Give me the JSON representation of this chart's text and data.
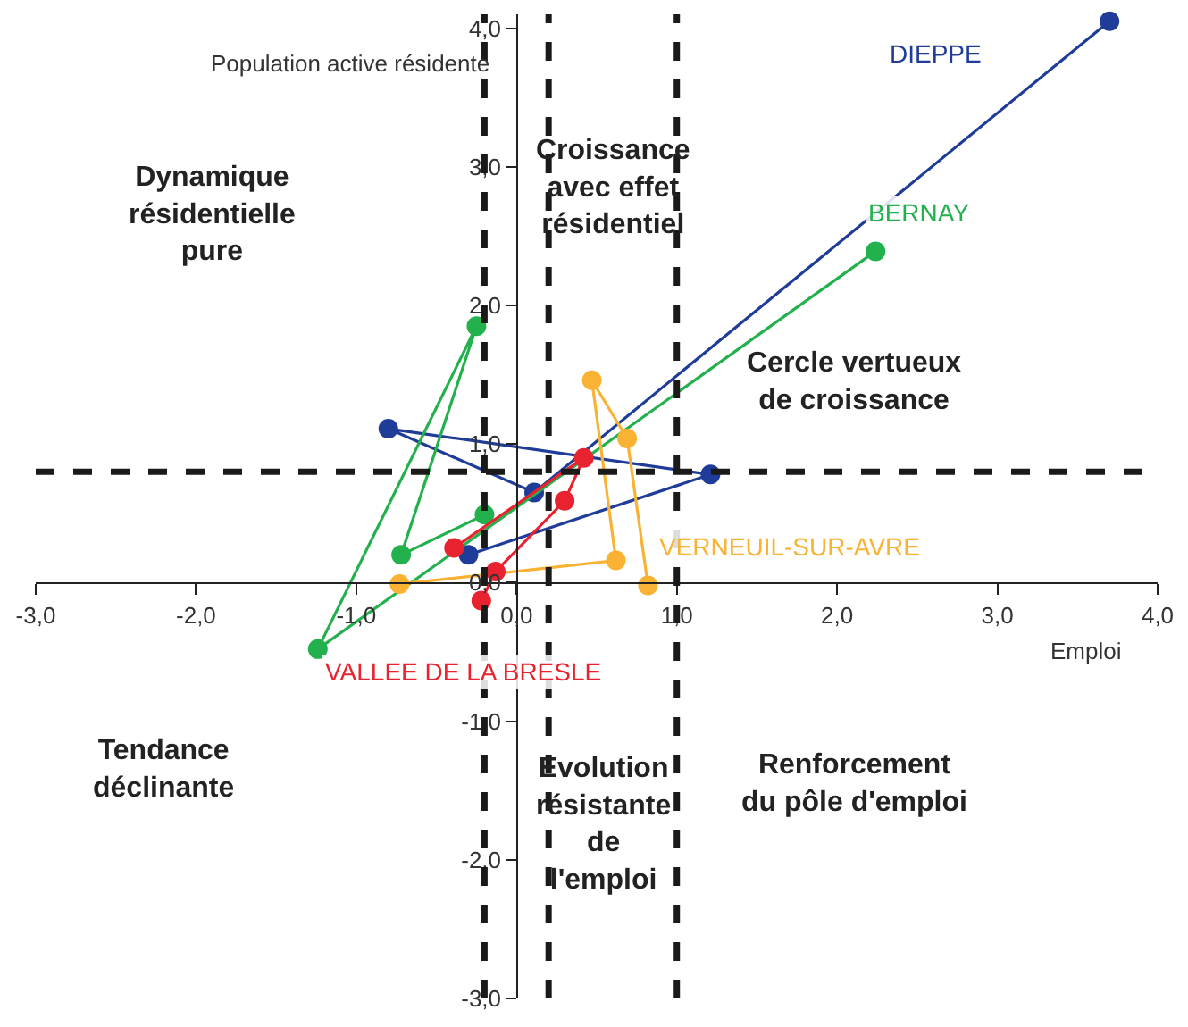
{
  "chart_data": {
    "type": "line",
    "xlabel": "Emploi",
    "ylabel": "Population active résidente",
    "xlim": [
      -3,
      4
    ],
    "ylim": [
      -3,
      4.1
    ],
    "xticks": [
      {
        "value": -3,
        "label": "-3,0"
      },
      {
        "value": -2,
        "label": "-2,0"
      },
      {
        "value": -1,
        "label": "-1,0"
      },
      {
        "value": 0,
        "label": "0,0"
      },
      {
        "value": 1,
        "label": "1,0"
      },
      {
        "value": 2,
        "label": "2,0"
      },
      {
        "value": 3,
        "label": "3,0"
      },
      {
        "value": 4,
        "label": "4,0"
      }
    ],
    "yticks": [
      {
        "value": -3,
        "label": "-3,0"
      },
      {
        "value": -2,
        "label": "-2,0"
      },
      {
        "value": -1,
        "label": "-1,0"
      },
      {
        "value": 0,
        "label": "0,0"
      },
      {
        "value": 1,
        "label": "1,0"
      },
      {
        "value": 2,
        "label": "2,0"
      },
      {
        "value": 3,
        "label": "3,0"
      },
      {
        "value": 4,
        "label": "4,0"
      }
    ],
    "legend": false,
    "marker": "circle",
    "line_style": "solid",
    "series": [
      {
        "name": "DIEPPE",
        "color": "#1f3c99",
        "x": [
          3.7,
          0.11,
          -0.8,
          1.21,
          -0.3
        ],
        "values": [
          4.05,
          0.65,
          1.11,
          0.78,
          0.2
        ]
      },
      {
        "name": "BERNAY",
        "color": "#22b14c",
        "x": [
          2.24,
          -1.24,
          -0.25,
          -0.72,
          -0.2
        ],
        "values": [
          2.39,
          -0.48,
          1.85,
          0.2,
          0.49
        ]
      },
      {
        "name": "VERNEUIL-SUR-AVRE",
        "color": "#f9b233",
        "x": [
          0.82,
          0.69,
          0.47,
          0.62,
          -0.73
        ],
        "values": [
          -0.02,
          1.04,
          1.46,
          0.16,
          -0.01
        ]
      },
      {
        "name": "VALLEE DE LA BRESLE",
        "color": "#e8232f",
        "x": [
          -0.22,
          -0.13,
          0.3,
          0.42,
          -0.39
        ],
        "values": [
          -0.13,
          0.08,
          0.59,
          0.9,
          0.25
        ]
      }
    ],
    "ref_lines": [
      {
        "axis": "x",
        "value": -0.2,
        "color": "#1a1a1a",
        "line_style": "dashed"
      },
      {
        "axis": "x",
        "value": 0.2,
        "color": "#1a1a1a",
        "line_style": "dashed"
      },
      {
        "axis": "x",
        "value": 1.0,
        "color": "#1a1a1a",
        "line_style": "dashed"
      },
      {
        "axis": "y",
        "value": 0.8,
        "color": "#1a1a1a",
        "line_style": "dashed"
      }
    ],
    "annotations": [
      "Dynamique\nrésidentielle\npure",
      "Croissance\navec effet\nrésidentiel",
      "Cercle vertueux\nde croissance",
      "Tendance\ndéclinante",
      "Evolution\nrésistante\nde\nl'emploi",
      "Renforcement\ndu pôle d'emploi"
    ]
  }
}
